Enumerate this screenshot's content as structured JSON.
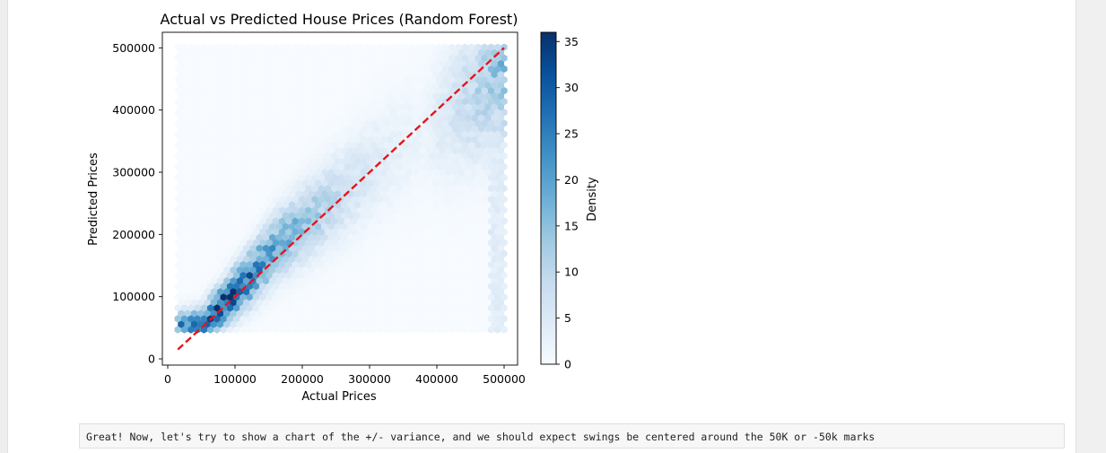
{
  "chart_data": {
    "type": "hexbin",
    "title": "Actual vs Predicted House Prices (Random Forest)",
    "xlabel": "Actual Prices",
    "ylabel": "Predicted Prices",
    "xlim": [
      -8000,
      520000
    ],
    "ylim": [
      -10000,
      525000
    ],
    "xticks": [
      0,
      100000,
      200000,
      300000,
      400000,
      500000
    ],
    "yticks": [
      0,
      100000,
      200000,
      300000,
      400000,
      500000
    ],
    "xtick_labels": [
      "0",
      "100000",
      "200000",
      "300000",
      "400000",
      "500000"
    ],
    "ytick_labels": [
      "0",
      "100000",
      "200000",
      "300000",
      "400000",
      "500000"
    ],
    "colormap": "Blues",
    "colorbar": {
      "label": "Density",
      "range": [
        0,
        36
      ],
      "ticks": [
        0,
        5,
        10,
        15,
        20,
        25,
        30,
        35
      ],
      "tick_labels": [
        "0",
        "5",
        "10",
        "15",
        "20",
        "25",
        "30",
        "35"
      ]
    },
    "reference_line": {
      "style": "dashed",
      "color": "#e8141b",
      "from": [
        15000,
        15000
      ],
      "to": [
        500000,
        500000
      ]
    },
    "hexbin_extent": {
      "x": [
        15000,
        500000
      ],
      "y": [
        47000,
        503000
      ]
    },
    "hexbin_gridsize": 50,
    "density_trend": [
      {
        "x": 50000,
        "y": 55000,
        "value": 25
      },
      {
        "x": 75000,
        "y": 80000,
        "value": 34
      },
      {
        "x": 100000,
        "y": 108000,
        "value": 32
      },
      {
        "x": 130000,
        "y": 140000,
        "value": 26
      },
      {
        "x": 160000,
        "y": 180000,
        "value": 20
      },
      {
        "x": 210000,
        "y": 225000,
        "value": 14
      },
      {
        "x": 260000,
        "y": 265000,
        "value": 8
      },
      {
        "x": 320000,
        "y": 320000,
        "value": 4
      },
      {
        "x": 380000,
        "y": 360000,
        "value": 2
      },
      {
        "x": 500000,
        "y": 470000,
        "value": 15
      }
    ],
    "grid": false
  },
  "notes": {
    "text": "Great! Now, let's try to show a chart of the +/- variance, and we should expect swings be centered around the 50K or -50k marks"
  }
}
